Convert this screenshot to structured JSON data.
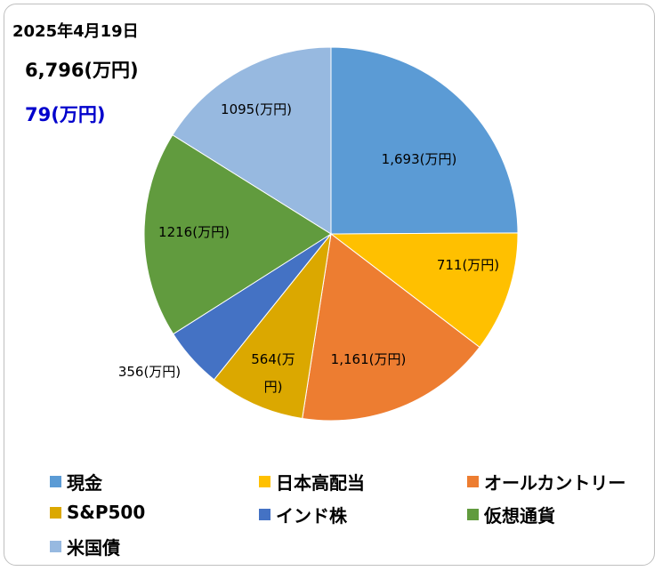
{
  "header": {
    "date": "2025年4月19日",
    "total": "6,796(万円)",
    "change": "79(万円)"
  },
  "colors": {
    "change_text": "#0000cc"
  },
  "chart_data": {
    "type": "pie",
    "start_angle_deg": 0,
    "direction": "clockwise",
    "slices": [
      {
        "name": "現金",
        "value": 1693,
        "label": "1,693(万円)",
        "color": "#5b9bd5"
      },
      {
        "name": "日本高配当",
        "value": 711,
        "label": "711(万円)",
        "color": "#ffc000"
      },
      {
        "name": "オールカントリー",
        "value": 1161,
        "label": "1,161(万円)",
        "color": "#ed7d31"
      },
      {
        "name": "S&P500",
        "value": 564,
        "label": "564(万円)",
        "color": "#dba800"
      },
      {
        "name": "インド株",
        "value": 356,
        "label": "356(万円)",
        "color": "#4472c4"
      },
      {
        "name": "仮想通貨",
        "value": 1216,
        "label": "1216(万円)",
        "color": "#619b3e"
      },
      {
        "name": "米国債",
        "value": 1095,
        "label": "1095(万円)",
        "color": "#97b9e0"
      }
    ],
    "legend_position": "bottom"
  }
}
